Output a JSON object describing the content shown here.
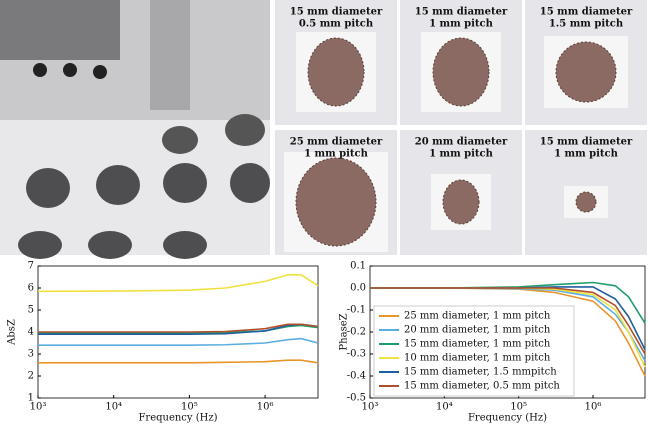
{
  "photos": {
    "panels": [
      {
        "caption": [
          "15 mm diameter",
          "0.5 mm pitch"
        ]
      },
      {
        "caption": [
          "15 mm diameter",
          "1 mm pitch"
        ]
      },
      {
        "caption": [
          "15 mm diameter",
          "1.5 mm pitch"
        ]
      },
      {
        "caption": [
          "25 mm diameter",
          "1 mm pitch"
        ]
      },
      {
        "caption": [
          "20 mm diameter",
          "1 mm pitch"
        ]
      },
      {
        "caption": [
          "15 mm diameter",
          "1 mm pitch"
        ]
      }
    ]
  },
  "chart_data": [
    {
      "type": "line",
      "ylabel": "AbsZ",
      "xlabel": "Frequency (Hz)",
      "xscale": "log",
      "x": [
        1000,
        10000,
        100000,
        300000,
        1000000,
        2000000,
        3000000,
        5000000
      ],
      "xlim": [
        1000,
        5000000
      ],
      "xticks": [
        {
          "value": 1000,
          "label": "10³"
        },
        {
          "value": 10000,
          "label": "10⁴"
        },
        {
          "value": 100000,
          "label": "10⁵"
        },
        {
          "value": 1000000,
          "label": "10⁶"
        }
      ],
      "ylim": [
        1,
        7
      ],
      "yticks": [
        1,
        2,
        3,
        4,
        5,
        6,
        7
      ],
      "series": [
        {
          "color": "#e8962a",
          "values": [
            2.6,
            2.6,
            2.6,
            2.62,
            2.65,
            2.72,
            2.72,
            2.6
          ]
        },
        {
          "color": "#5aaee0",
          "values": [
            3.4,
            3.4,
            3.4,
            3.42,
            3.5,
            3.65,
            3.7,
            3.5
          ]
        },
        {
          "color": "#1e9e6e",
          "values": [
            3.95,
            3.95,
            3.95,
            3.97,
            4.05,
            4.25,
            4.3,
            4.2
          ]
        },
        {
          "color": "#f0e040",
          "values": [
            5.85,
            5.86,
            5.9,
            6.0,
            6.3,
            6.6,
            6.6,
            6.1
          ]
        },
        {
          "color": "#1f5fa0",
          "values": [
            3.9,
            3.9,
            3.9,
            3.92,
            4.05,
            4.3,
            4.35,
            4.25
          ]
        },
        {
          "color": "#b0502a",
          "values": [
            4.0,
            4.0,
            4.0,
            4.02,
            4.15,
            4.35,
            4.35,
            4.25
          ]
        }
      ]
    },
    {
      "type": "line",
      "ylabel": "PhaseZ",
      "xlabel": "Frequency (Hz)",
      "xscale": "log",
      "legend": "lower left",
      "x": [
        1000,
        10000,
        100000,
        300000,
        1000000,
        2000000,
        3000000,
        5000000
      ],
      "xlim": [
        1000,
        5000000
      ],
      "xticks": [
        {
          "value": 1000,
          "label": "10³"
        },
        {
          "value": 10000,
          "label": "10⁴"
        },
        {
          "value": 100000,
          "label": "10⁵"
        },
        {
          "value": 1000000,
          "label": "10⁶"
        }
      ],
      "ylim": [
        -0.5,
        0.1
      ],
      "yticks": [
        -0.5,
        -0.4,
        -0.3,
        -0.2,
        -0.1,
        {
          "value": 0,
          "label": "0.0"
        },
        0.1
      ],
      "series": [
        {
          "name": "25 mm diameter, 1 mm pitch",
          "color": "#e8962a",
          "values": [
            0,
            0,
            -0.005,
            -0.02,
            -0.06,
            -0.15,
            -0.25,
            -0.4
          ]
        },
        {
          "name": "20 mm diameter, 1 mm pitch",
          "color": "#5aaee0",
          "values": [
            0,
            0,
            -0.003,
            -0.01,
            -0.04,
            -0.12,
            -0.2,
            -0.33
          ]
        },
        {
          "name": "15 mm diameter, 1 mm pitch",
          "color": "#1e9e6e",
          "values": [
            0,
            0,
            0.005,
            0.015,
            0.025,
            0.01,
            -0.04,
            -0.16
          ]
        },
        {
          "name": "10 mm diameter, 1 mm pitch",
          "color": "#f0e040",
          "values": [
            0,
            0,
            0,
            -0.005,
            -0.03,
            -0.1,
            -0.2,
            -0.36
          ]
        },
        {
          "name": "15 mm diameter, 1.5 mmpitch",
          "color": "#1f5fa0",
          "values": [
            0,
            0,
            0,
            0.005,
            0.005,
            -0.05,
            -0.13,
            -0.28
          ]
        },
        {
          "name": "15 mm diameter, 0.5 mm pitch",
          "color": "#b0502a",
          "values": [
            0,
            0,
            0,
            0,
            -0.02,
            -0.08,
            -0.17,
            -0.3
          ]
        }
      ]
    }
  ]
}
